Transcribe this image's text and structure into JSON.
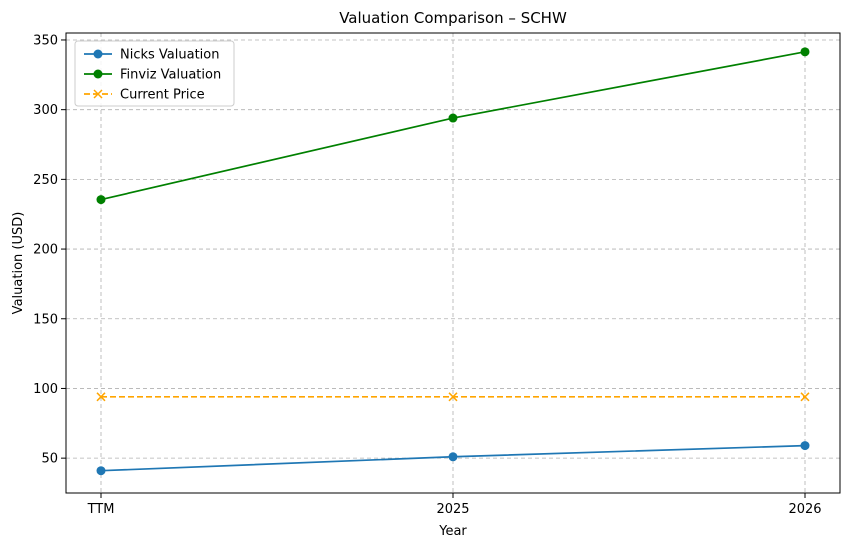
{
  "chart_data": {
    "type": "line",
    "title": "Valuation Comparison – SCHW",
    "xlabel": "Year",
    "ylabel": "Valuation (USD)",
    "categories": [
      "TTM",
      "2025",
      "2026"
    ],
    "ylim": [
      25,
      355
    ],
    "yticks": [
      50,
      100,
      150,
      200,
      250,
      300,
      350
    ],
    "grid": true,
    "legend_position": "top-left",
    "series": [
      {
        "name": "Nicks Valuation",
        "values": [
          41,
          51,
          59
        ],
        "color": "#1f77b4",
        "marker": "circle",
        "linestyle": "solid"
      },
      {
        "name": "Finviz Valuation",
        "values": [
          235.5,
          294,
          341.5
        ],
        "color": "#008000",
        "marker": "circle",
        "linestyle": "solid"
      },
      {
        "name": "Current Price",
        "values": [
          94,
          94,
          94
        ],
        "color": "#ffa500",
        "marker": "x",
        "linestyle": "dashed"
      }
    ]
  }
}
